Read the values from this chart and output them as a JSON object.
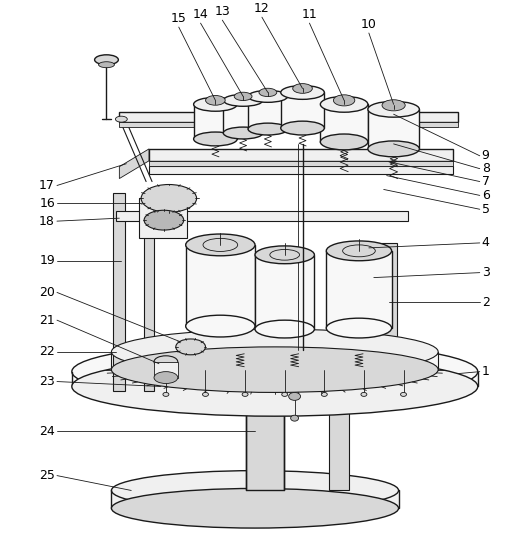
{
  "background_color": "#ffffff",
  "line_color": "#1a1a1a",
  "figsize": [
    5.1,
    5.35
  ],
  "dpi": 100,
  "label_fontsize": 9,
  "colors": {
    "light": "#f0f0f0",
    "medium": "#d8d8d8",
    "dark": "#b8b8b8",
    "very_light": "#f8f8f8"
  }
}
